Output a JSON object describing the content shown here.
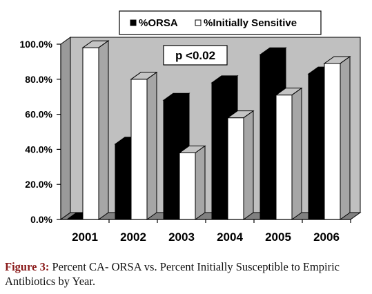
{
  "caption": {
    "label": "Figure 3:",
    "text": "Percent CA- ORSA vs. Percent Initially Susceptible to Empiric Antibiotics by Year."
  },
  "chart_data": {
    "type": "bar",
    "categories": [
      "2001",
      "2002",
      "2003",
      "2004",
      "2005",
      "2006"
    ],
    "series": [
      {
        "name": "%ORSA",
        "color": "#000000",
        "values": [
          0,
          43,
          68,
          78,
          94,
          83
        ]
      },
      {
        "name": "%Initially Sensitive",
        "color": "#ffffff",
        "values": [
          98,
          80,
          38,
          58,
          71,
          89
        ]
      }
    ],
    "yticks": [
      "0.0%",
      "20.0%",
      "40.0%",
      "60.0%",
      "80.0%",
      "100.0%"
    ],
    "ylim": [
      0,
      100
    ],
    "annotation": "p <0.02",
    "legend_position": "top-right",
    "style": "3d-bar",
    "grid": false,
    "wall_color": "#c0c0c0"
  }
}
